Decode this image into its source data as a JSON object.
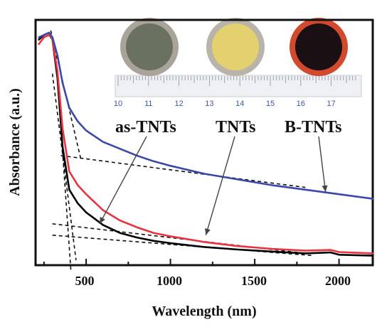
{
  "chart_data": {
    "type": "line",
    "title": "",
    "xlabel": "Wavelength (nm)",
    "ylabel": "Absorbance (a.u.)",
    "xlim": [
      200,
      2200
    ],
    "ylim": [
      0,
      1
    ],
    "y_ticks_shown": false,
    "x_ticks": [
      "500",
      "1000",
      "1500",
      "2000"
    ],
    "grid": false,
    "legend": "none",
    "series": [
      {
        "name": "as-TNTs",
        "color": "#000000",
        "x": [
          220,
          250,
          280,
          300,
          330,
          360,
          400,
          450,
          500,
          600,
          700,
          800,
          900,
          1000,
          1200,
          1400,
          1600,
          1800,
          1950,
          2000,
          2200
        ],
        "y": [
          0.97,
          0.99,
          1.0,
          0.97,
          0.8,
          0.5,
          0.31,
          0.25,
          0.21,
          0.155,
          0.12,
          0.1,
          0.085,
          0.075,
          0.058,
          0.047,
          0.038,
          0.03,
          0.034,
          0.024,
          0.02
        ]
      },
      {
        "name": "TNTs",
        "color": "#e8343f",
        "x": [
          220,
          250,
          280,
          300,
          330,
          360,
          400,
          450,
          500,
          600,
          700,
          800,
          900,
          1000,
          1200,
          1400,
          1600,
          1800,
          1950,
          2000,
          2200
        ],
        "y": [
          0.95,
          0.98,
          0.99,
          0.97,
          0.83,
          0.58,
          0.39,
          0.33,
          0.29,
          0.22,
          0.175,
          0.145,
          0.12,
          0.105,
          0.08,
          0.062,
          0.05,
          0.042,
          0.045,
          0.036,
          0.03
        ]
      },
      {
        "name": "B-TNTs",
        "color": "#3c48a8",
        "x": [
          220,
          250,
          280,
          300,
          330,
          360,
          400,
          450,
          500,
          600,
          700,
          800,
          900,
          1000,
          1200,
          1400,
          1600,
          1800,
          2000,
          2200
        ],
        "y": [
          0.98,
          0.99,
          1.0,
          0.98,
          0.9,
          0.78,
          0.67,
          0.61,
          0.57,
          0.52,
          0.49,
          0.46,
          0.435,
          0.415,
          0.38,
          0.355,
          0.33,
          0.31,
          0.29,
          0.27
        ]
      }
    ],
    "fit_lines": [
      {
        "x": [
          290,
          470
        ],
        "y": [
          1.01,
          0.44
        ]
      },
      {
        "x": [
          350,
          1800
        ],
        "y": [
          0.46,
          0.32
        ]
      },
      {
        "x": [
          320,
          410
        ],
        "y": [
          0.9,
          -0.05
        ]
      },
      {
        "x": [
          300,
          1800
        ],
        "y": [
          0.16,
          0.03
        ]
      },
      {
        "x": [
          300,
          440
        ],
        "y": [
          0.82,
          0.0
        ]
      },
      {
        "x": [
          300,
          1850
        ],
        "y": [
          0.11,
          0.02
        ]
      }
    ],
    "annotations": [
      {
        "label": "as-TNTs",
        "arrow_to": {
          "x": 580,
          "y": 0.16
        }
      },
      {
        "label": "TNTs",
        "arrow_to": {
          "x": 1210,
          "y": 0.11
        }
      },
      {
        "label": "B-TNTs",
        "arrow_to": {
          "x": 1920,
          "y": 0.3
        }
      }
    ],
    "inset": {
      "description_type": "photo of three sample discs above a ruler",
      "discs": [
        {
          "fill": "#6b7160",
          "rim": "#a9a39a"
        },
        {
          "fill": "#e3d16f",
          "rim": "#b8b4aa"
        },
        {
          "fill": "#1a0f12",
          "rim": "#d24a2e"
        }
      ],
      "ruler_labels": [
        "10",
        "11",
        "12",
        "13",
        "14",
        "15",
        "16",
        "17"
      ]
    }
  }
}
